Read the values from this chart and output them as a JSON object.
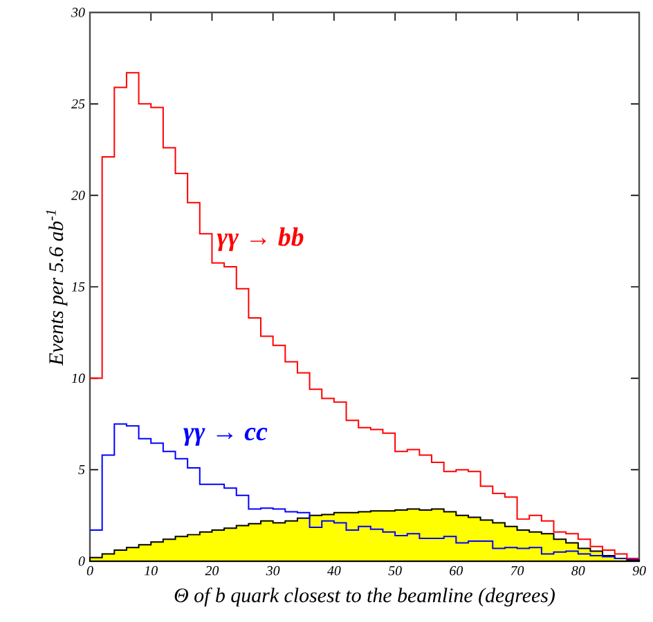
{
  "chart_data": {
    "type": "histogram",
    "xlabel": "Θ of b quark closest to the beamline (degrees)",
    "ylabel": "Events per 5.6 ab$^{-1}$",
    "bins": [
      0,
      2,
      4,
      6,
      8,
      10,
      12,
      14,
      16,
      18,
      20,
      22,
      24,
      26,
      28,
      30,
      32,
      34,
      36,
      38,
      40,
      42,
      44,
      46,
      48,
      50,
      52,
      54,
      56,
      58,
      60,
      62,
      64,
      66,
      68,
      70,
      72,
      74,
      76,
      78,
      80,
      82,
      84,
      86,
      88,
      90
    ],
    "xlim": [
      0,
      90
    ],
    "ylim": [
      0,
      30
    ],
    "xticks": [
      0,
      10,
      20,
      30,
      40,
      50,
      60,
      70,
      80,
      90
    ],
    "yticks": [
      0,
      5,
      10,
      15,
      20,
      25,
      30
    ],
    "grid": false,
    "series": [
      {
        "name": "γγ → bb",
        "color": "#ff0000",
        "values": [
          10.0,
          22.1,
          25.9,
          26.7,
          25.0,
          24.8,
          22.6,
          21.2,
          19.6,
          17.9,
          16.3,
          16.1,
          14.9,
          13.3,
          12.3,
          11.8,
          10.9,
          10.3,
          9.4,
          8.9,
          8.7,
          7.7,
          7.3,
          7.2,
          7.0,
          6.0,
          6.1,
          5.8,
          5.4,
          4.9,
          5.0,
          4.9,
          4.1,
          3.7,
          3.5,
          2.3,
          2.5,
          2.2,
          1.6,
          1.5,
          1.2,
          0.8,
          0.6,
          0.4,
          0.15
        ]
      },
      {
        "name": "γγ → cc",
        "color": "#0000ff",
        "values": [
          1.7,
          5.8,
          7.5,
          7.4,
          6.7,
          6.45,
          6.0,
          5.6,
          5.1,
          4.2,
          4.2,
          4.0,
          3.6,
          2.85,
          2.9,
          2.85,
          2.7,
          2.65,
          1.85,
          2.2,
          2.1,
          1.7,
          1.9,
          1.75,
          1.6,
          1.4,
          1.5,
          1.25,
          1.25,
          1.35,
          1.0,
          1.1,
          1.1,
          0.7,
          0.75,
          0.7,
          0.75,
          0.4,
          0.5,
          0.55,
          0.4,
          0.3,
          0.25,
          0.15,
          0.1
        ]
      },
      {
        "color": "#ffff00",
        "values": [
          0.2,
          0.4,
          0.6,
          0.75,
          0.9,
          1.05,
          1.2,
          1.35,
          1.45,
          1.6,
          1.7,
          1.8,
          1.95,
          2.05,
          2.2,
          2.1,
          2.2,
          2.35,
          2.5,
          2.55,
          2.65,
          2.65,
          2.7,
          2.75,
          2.75,
          2.8,
          2.85,
          2.8,
          2.85,
          2.7,
          2.5,
          2.4,
          2.25,
          2.1,
          1.9,
          1.7,
          1.6,
          1.5,
          1.2,
          1.0,
          0.7,
          0.55,
          0.3,
          0.15,
          0.05
        ]
      }
    ]
  }
}
